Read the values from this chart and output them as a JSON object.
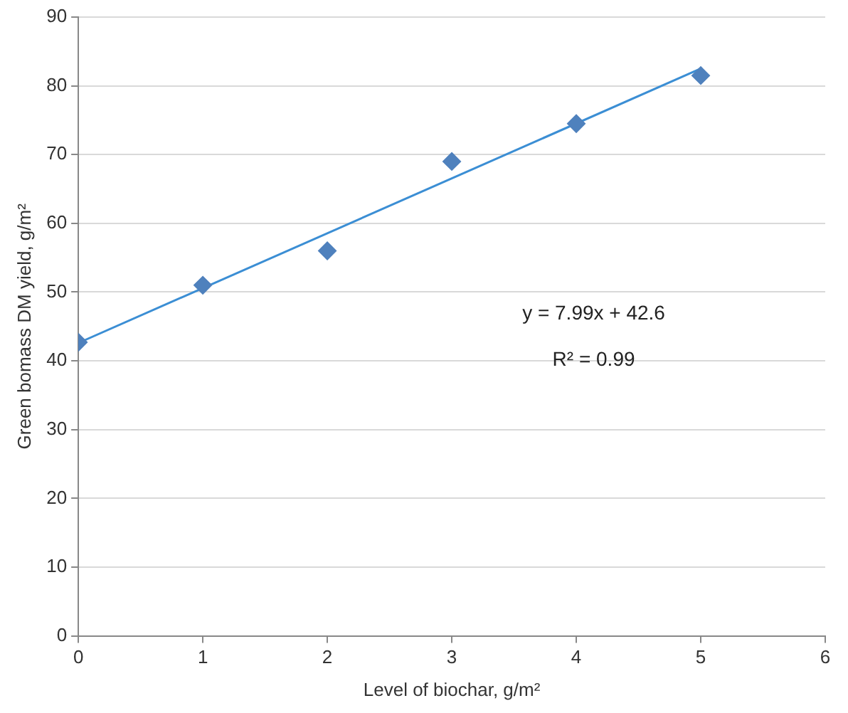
{
  "chart_data": {
    "type": "scatter",
    "xlabel": "Level of biochar, g/m²",
    "ylabel": "Green bomass DM yield, g/m²",
    "x": [
      0,
      1,
      2,
      3,
      4,
      5
    ],
    "marker": "diamond",
    "grid": "y",
    "xlim": [
      0,
      6
    ],
    "xticks": [
      0,
      1,
      2,
      3,
      4,
      5,
      6
    ],
    "ylim": [
      0,
      90
    ],
    "yticks": [
      0,
      10,
      20,
      30,
      40,
      50,
      60,
      70,
      80,
      90
    ],
    "series": [
      {
        "color": "#4f81bd",
        "values": [
          42.7,
          51,
          56,
          69,
          74.5,
          81.5
        ]
      },
      {
        "type": "line",
        "x": [
          0,
          5
        ],
        "values": [
          42.6,
          82.5
        ],
        "color": "#3b8ed4",
        "marker": "none"
      }
    ],
    "annotations": [
      "y = 7.99x + 42.6",
      "R² = 0.99"
    ]
  }
}
